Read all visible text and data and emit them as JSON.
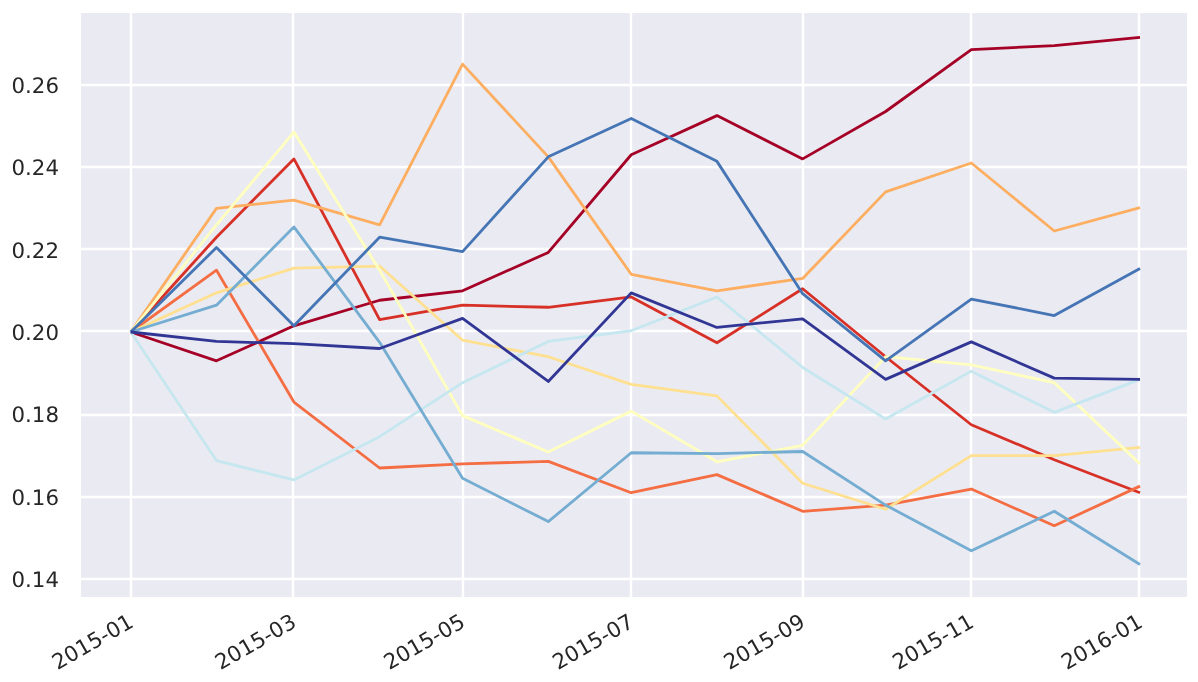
{
  "chart_data": {
    "type": "line",
    "x": [
      "2015-01",
      "2015-02",
      "2015-03",
      "2015-04",
      "2015-05",
      "2015-06",
      "2015-07",
      "2015-08",
      "2015-09",
      "2015-10",
      "2015-11",
      "2015-12",
      "2016-01"
    ],
    "series": [
      {
        "color": "#a50026",
        "values": [
          0.2,
          0.193,
          0.2015,
          0.2077,
          0.21,
          0.2193,
          0.243,
          0.2525,
          0.242,
          0.2535,
          0.2685,
          0.2695,
          0.2715
        ]
      },
      {
        "color": "#d73027",
        "values": [
          0.2,
          0.223,
          0.242,
          0.203,
          0.2065,
          0.206,
          0.2085,
          0.1974,
          0.2105,
          0.194,
          0.1775,
          0.169,
          0.161
        ]
      },
      {
        "color": "#f46d43",
        "values": [
          0.2,
          0.215,
          0.183,
          0.167,
          0.168,
          0.1686,
          0.161,
          0.1654,
          0.1565,
          0.158,
          0.1619,
          0.153,
          0.1626
        ]
      },
      {
        "color": "#fdae61",
        "values": [
          0.2,
          0.23,
          0.232,
          0.226,
          0.265,
          0.2425,
          0.214,
          0.21,
          0.213,
          0.234,
          0.241,
          0.2245,
          0.2302
        ]
      },
      {
        "color": "#fee090",
        "values": [
          0.2,
          0.2095,
          0.2155,
          0.216,
          0.198,
          0.194,
          0.1873,
          0.1845,
          0.1633,
          0.157,
          0.17,
          0.17,
          0.172
        ]
      },
      {
        "color": "#ffffbf",
        "values": [
          0.2,
          0.226,
          0.2485,
          0.215,
          0.1797,
          0.1709,
          0.1808,
          0.1685,
          0.1725,
          0.194,
          0.192,
          0.1877,
          0.168
        ]
      },
      {
        "color": "#c6e7f0",
        "values": [
          0.2,
          0.1688,
          0.1641,
          0.1746,
          0.1877,
          0.1977,
          0.2003,
          0.2085,
          0.1914,
          0.1789,
          0.1905,
          0.1805,
          0.1885
        ]
      },
      {
        "color": "#74add1",
        "values": [
          0.2,
          0.2065,
          0.2255,
          0.1975,
          0.1645,
          0.154,
          0.1707,
          0.1705,
          0.171,
          0.158,
          0.1469,
          0.1565,
          0.1436
        ]
      },
      {
        "color": "#4575b4",
        "values": [
          0.2,
          0.2205,
          0.2015,
          0.223,
          0.2195,
          0.2425,
          0.2518,
          0.2414,
          0.2093,
          0.193,
          0.208,
          0.204,
          0.2154
        ]
      },
      {
        "color": "#313695",
        "values": [
          0.2,
          0.1977,
          0.1972,
          0.196,
          0.2033,
          0.188,
          0.2095,
          0.2011,
          0.2032,
          0.1885,
          0.1976,
          0.1888,
          0.1885
        ]
      }
    ],
    "xlim": [
      "2014-12-14",
      "2016-01-18"
    ],
    "xticks": [
      "2015-01",
      "2015-03",
      "2015-05",
      "2015-07",
      "2015-09",
      "2015-11",
      "2016-01"
    ],
    "ylim": [
      0.1357,
      0.2774
    ],
    "yticks": [
      0.14,
      0.16,
      0.18,
      {
        "value": 0.2,
        "label": "0.20"
      },
      0.22,
      0.24,
      0.26
    ],
    "grid": true,
    "marker": "none",
    "line_style": "solid"
  }
}
